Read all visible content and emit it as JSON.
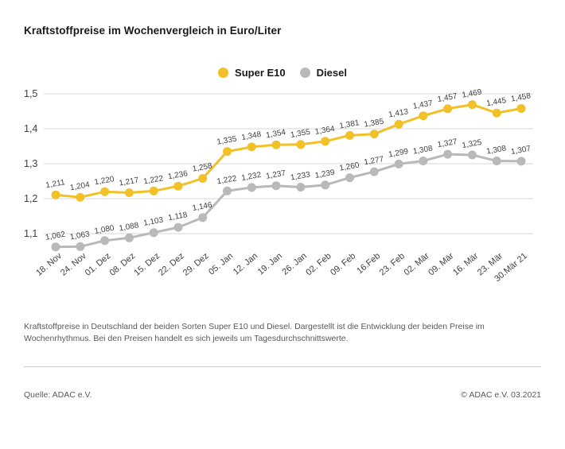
{
  "page": {
    "title": "Kraftstoffpreise im Wochenvergleich in Euro/Liter",
    "description": "Kraftstoffpreise in Deutschland der beiden Sorten Super E10 und Diesel. Dargestellt ist die Entwicklung der beiden Preise im Wochenrhythmus. Bei den Preisen handelt es sich jeweils um Tagesdurchschnittswerte.",
    "source": "Quelle: ADAC e.V.",
    "copyright": "© ADAC e.V. 03.2021"
  },
  "colors": {
    "super_e10": "#F2C127",
    "diesel": "#B9B9B9",
    "gridline": "#D8D8D8",
    "tick_text": "#3e3e3e"
  },
  "chart_data": {
    "type": "line",
    "title": "Kraftstoffpreise im Wochenvergleich in Euro/Liter",
    "unit": "Euro/Liter",
    "categories": [
      "18. Nov",
      "24. Nov",
      "01. Dez",
      "08. Dez",
      "15. Dez",
      "22. Dez",
      "29. Dez",
      "05. Jan",
      "12. Jan",
      "19. Jan",
      "26. Jan",
      "02. Feb",
      "09. Feb",
      "16.Feb",
      "23. Feb",
      "02. Mär",
      "09. Mär",
      "16. Mär",
      "23. Mär",
      "30.Mär 21"
    ],
    "series": [
      {
        "name": "Super E10",
        "color": "#F2C127",
        "values": [
          1.211,
          1.204,
          1.22,
          1.217,
          1.222,
          1.236,
          1.258,
          1.335,
          1.348,
          1.354,
          1.355,
          1.364,
          1.381,
          1.385,
          1.413,
          1.437,
          1.457,
          1.469,
          1.445,
          1.458
        ]
      },
      {
        "name": "Diesel",
        "color": "#B9B9B9",
        "values": [
          1.062,
          1.063,
          1.08,
          1.088,
          1.103,
          1.118,
          1.146,
          1.222,
          1.232,
          1.237,
          1.233,
          1.239,
          1.26,
          1.277,
          1.299,
          1.308,
          1.327,
          1.325,
          1.308,
          1.307
        ]
      }
    ],
    "y_ticks": [
      "1,5",
      "1,4",
      "1,3",
      "1,2",
      "1,1"
    ],
    "y_tick_values": [
      1.5,
      1.4,
      1.3,
      1.2,
      1.1
    ],
    "ylim": [
      1.1,
      1.5
    ],
    "grid": true,
    "legend_position": "top",
    "data_labels": true,
    "decimal_separator": ","
  }
}
